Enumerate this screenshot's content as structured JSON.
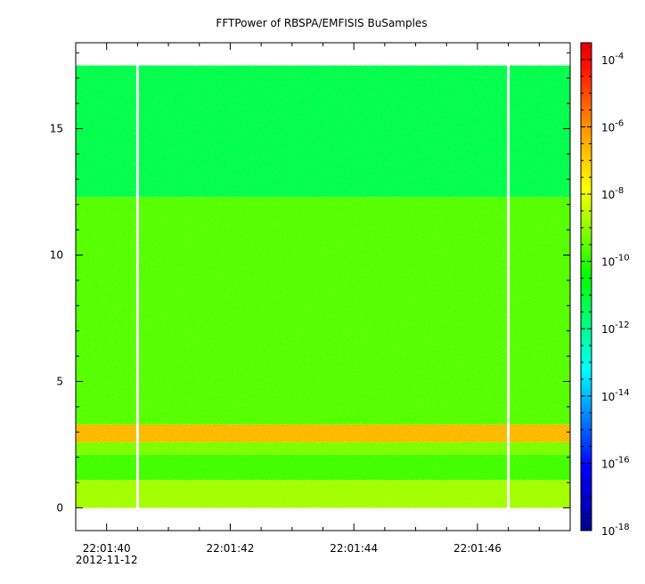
{
  "chart_data": {
    "type": "heatmap",
    "title": "FFTPower of RBSPA/EMFISIS  BuSamples",
    "xlabel": "",
    "ylabel": "",
    "x_ticks": [
      {
        "time": "22:01:40",
        "label": "22:01:40",
        "sublabel": "2012-11-12"
      },
      {
        "time": "22:01:42",
        "label": "22:01:42"
      },
      {
        "time": "22:01:44",
        "label": "22:01:44"
      },
      {
        "time": "22:01:46",
        "label": "22:01:46"
      }
    ],
    "x_range": [
      "22:01:39.5",
      "22:01:47.5"
    ],
    "y_ticks": [
      0,
      5,
      10,
      15
    ],
    "y_range": [
      -0.9,
      18.4
    ],
    "data_extent_y": [
      0,
      17.5
    ],
    "data_extent_x": [
      "22:01:39.5",
      "22:01:47.5"
    ],
    "data_gaps": [
      "22:01:40.5",
      "22:01:46.5"
    ],
    "colorbar": {
      "scale": "log",
      "range_exponent": [
        -18,
        -3.5
      ],
      "tick_exponents": [
        -18,
        -16,
        -14,
        -12,
        -10,
        -8,
        -6,
        -4
      ],
      "tick_base": "10"
    },
    "bands": [
      {
        "y": [
          0,
          1.1
        ],
        "level_exponent": -8.8
      },
      {
        "y": [
          1.1,
          2.1
        ],
        "level_exponent": -9.8
      },
      {
        "y": [
          2.1,
          2.6
        ],
        "level_exponent": -9.2
      },
      {
        "y": [
          2.6,
          3.3
        ],
        "level_exponent": -6.8
      },
      {
        "y": [
          3.3,
          12.3
        ],
        "level_exponent": -9.6
      },
      {
        "y": [
          12.3,
          17.5
        ],
        "level_exponent": -11.3
      }
    ],
    "palette": [
      "#00008c",
      "#0000ff",
      "#00ffff",
      "#00ff00",
      "#ffff00",
      "#ff8000",
      "#ff0000",
      "#e00000"
    ]
  }
}
